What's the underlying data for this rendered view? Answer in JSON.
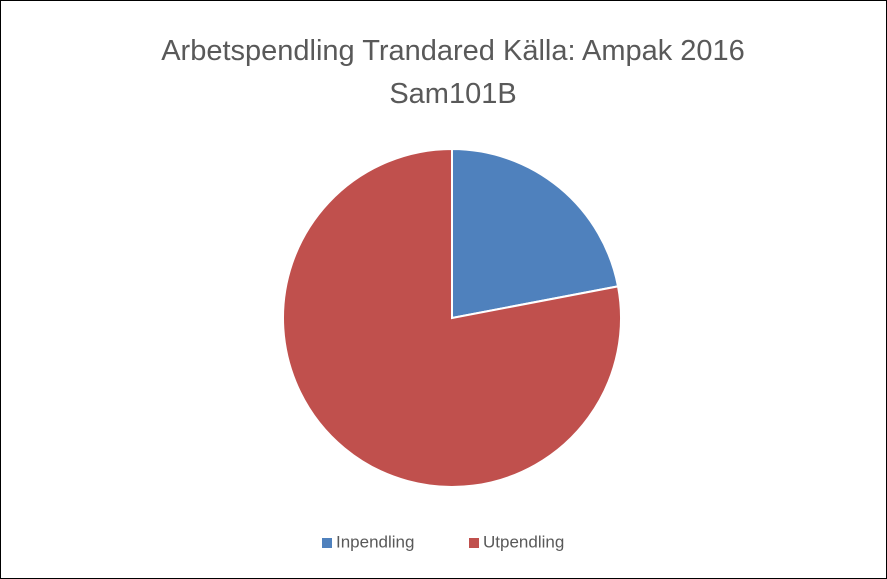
{
  "chart_data": {
    "type": "pie",
    "title": "Arbetspendling Trandared Källa: Ampak 2016 Sam101B",
    "categories": [
      "Inpendling",
      "Utpendling"
    ],
    "values": [
      22,
      78
    ],
    "colors": [
      "#4f81bd",
      "#c0504d"
    ],
    "legend": "bottom"
  }
}
